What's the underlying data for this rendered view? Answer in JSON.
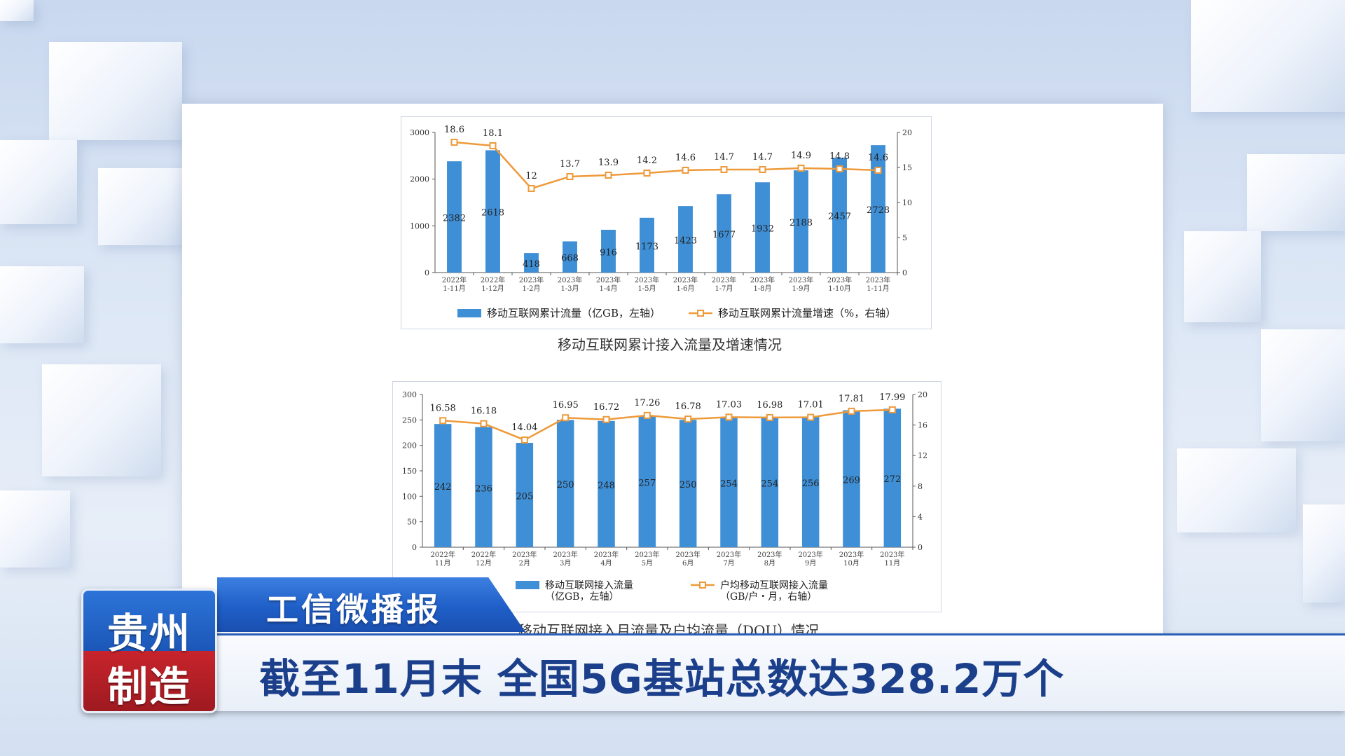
{
  "lower_third": {
    "program": "工信微播报",
    "headline": "截至11月末 全国5G基站总数达328.2万个",
    "logo_line1": "贵州",
    "logo_line2": "制造"
  },
  "chart_data": [
    {
      "type": "bar",
      "title": "移动互联网累计接入流量及增速情况",
      "categories": [
        "2022年\n1-11月",
        "2022年\n1-12月",
        "2023年\n1-2月",
        "2023年\n1-3月",
        "2023年\n1-4月",
        "2023年\n1-5月",
        "2023年\n1-6月",
        "2023年\n1-7月",
        "2023年\n1-8月",
        "2023年\n1-9月",
        "2023年\n1-10月",
        "2023年\n1-11月"
      ],
      "series": [
        {
          "name": "移动互联网累计流量（亿GB，左轴）",
          "type": "bar",
          "axis": "left",
          "color": "#3f8fd6",
          "values": [
            2382,
            2618,
            418,
            668,
            916,
            1173,
            1423,
            1677,
            1932,
            2188,
            2457,
            2728
          ]
        },
        {
          "name": "移动互联网累计流量增速（%，右轴）",
          "type": "line",
          "axis": "right",
          "color": "#ee9a3a",
          "values": [
            18.6,
            18.1,
            12.0,
            13.7,
            13.9,
            14.2,
            14.6,
            14.7,
            14.7,
            14.9,
            14.8,
            14.6
          ]
        }
      ],
      "ylim_left": [
        0,
        3000
      ],
      "yticks_left": [
        0,
        1000,
        2000,
        3000
      ],
      "ylim_right": [
        0,
        20
      ],
      "yticks_right": [
        0,
        5,
        10,
        15,
        20
      ],
      "legend": "bottom"
    },
    {
      "type": "bar",
      "title": "移动互联网接入月流量及户均流量（DOU）情况",
      "categories": [
        "2022年\n11月",
        "2022年\n12月",
        "2023年\n2月",
        "2023年\n3月",
        "2023年\n4月",
        "2023年\n5月",
        "2023年\n6月",
        "2023年\n7月",
        "2023年\n8月",
        "2023年\n9月",
        "2023年\n10月",
        "2023年\n11月"
      ],
      "series": [
        {
          "name": "移动互联网接入流量\n（亿GB，左轴）",
          "type": "bar",
          "axis": "left",
          "color": "#3f8fd6",
          "values": [
            242,
            236,
            205,
            250,
            248,
            257,
            250,
            254,
            254,
            256,
            269,
            272
          ]
        },
        {
          "name": "户均移动互联网接入流量\n（GB/户・月，右轴）",
          "type": "line",
          "axis": "right",
          "color": "#ee9a3a",
          "values": [
            16.58,
            16.18,
            14.04,
            16.95,
            16.72,
            17.26,
            16.78,
            17.03,
            16.98,
            17.01,
            17.81,
            17.99
          ]
        }
      ],
      "ylim_left": [
        0,
        300
      ],
      "yticks_left": [
        0,
        50,
        100,
        150,
        200,
        250,
        300
      ],
      "ylim_right": [
        0,
        20
      ],
      "yticks_right": [
        0,
        4,
        8,
        12,
        16,
        20
      ],
      "legend": "bottom"
    }
  ]
}
